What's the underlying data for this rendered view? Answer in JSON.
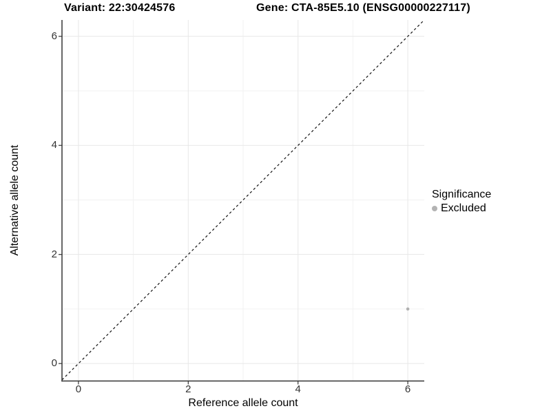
{
  "chart_data": {
    "type": "scatter",
    "titles": {
      "variant": "Variant: 22:30424576",
      "gene": "Gene: CTA-85E5.10 (ENSG00000227117)"
    },
    "xlabel": "Reference allele count",
    "ylabel": "Alternative allele count",
    "xlim": [
      -0.3,
      6.3
    ],
    "ylim": [
      -0.32,
      6.3
    ],
    "x_major_ticks": [
      0,
      2,
      4,
      6
    ],
    "x_minor_ticks": [
      1,
      3,
      5
    ],
    "y_major_ticks": [
      0,
      2,
      4,
      6
    ],
    "y_minor_ticks": [
      1,
      3,
      5
    ],
    "grid": {
      "visible": true,
      "major_color": "#e7e7e7",
      "minor_color": "#f2f2f2"
    },
    "axis": {
      "line_color": "#333333",
      "tick_label_color": "#333333",
      "tick_length": 5
    },
    "identity_line": {
      "style": "dashed",
      "color": "#111111",
      "from": -0.3,
      "to": 6.3
    },
    "series": [
      {
        "name": "Excluded",
        "color": "#b0b0b0",
        "point_radius": 2.3,
        "points": [
          {
            "x": 6,
            "y": 1
          }
        ]
      }
    ],
    "legend": {
      "title": "Significance",
      "position": "right",
      "items": [
        {
          "label": "Excluded",
          "color": "#b3b3b3"
        }
      ]
    },
    "background": "#ffffff"
  }
}
